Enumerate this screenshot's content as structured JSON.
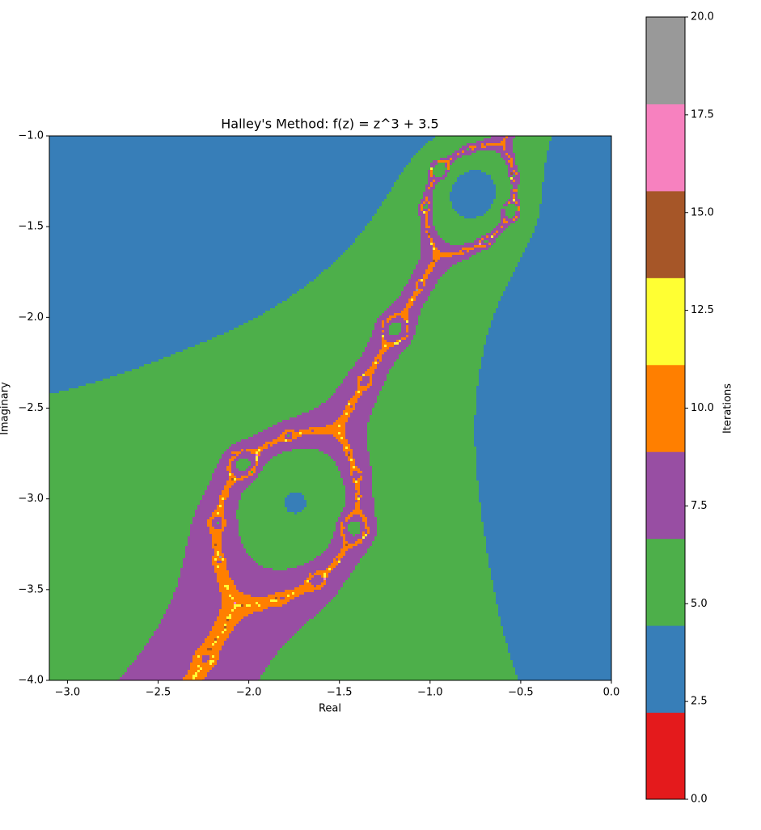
{
  "chart_data": {
    "type": "fractal",
    "title": "Halley's Method: f(z) = z^3 + 3.5",
    "x_label": "Real",
    "y_label": "Imaginary",
    "xlim": [
      -3.1,
      0
    ],
    "ylim": [
      -4,
      -1
    ],
    "xticks": [
      {
        "value": -3,
        "label": "−3.0"
      },
      {
        "value": -2.5,
        "label": "−2.5"
      },
      {
        "value": -2,
        "label": "−2.0"
      },
      {
        "value": -1.5,
        "label": "−1.5"
      },
      {
        "value": -1,
        "label": "−1.0"
      },
      {
        "value": -0.5,
        "label": "−0.5"
      },
      {
        "value": 0,
        "label": "0.0"
      }
    ],
    "yticks": [
      {
        "value": -1,
        "label": "−1.0"
      },
      {
        "value": -1.5,
        "label": "−1.5"
      },
      {
        "value": -2,
        "label": "−2.0"
      },
      {
        "value": -2.5,
        "label": "−2.5"
      },
      {
        "value": -3,
        "label": "−3.0"
      },
      {
        "value": -3.5,
        "label": "−3.5"
      },
      {
        "value": -4,
        "label": "−4.0"
      }
    ],
    "colorbar_label": "Iterations",
    "clim": [
      0,
      20
    ],
    "cticks": [
      {
        "value": 0,
        "label": "0.0"
      },
      {
        "value": 2.5,
        "label": "2.5"
      },
      {
        "value": 5,
        "label": "5.0"
      },
      {
        "value": 7.5,
        "label": "7.5"
      },
      {
        "value": 10,
        "label": "10.0"
      },
      {
        "value": 12.5,
        "label": "12.5"
      },
      {
        "value": 15,
        "label": "15.0"
      },
      {
        "value": 17.5,
        "label": "17.5"
      },
      {
        "value": 20,
        "label": "20.0"
      }
    ],
    "colors": [
      "#e41a1c",
      "#377eb8",
      "#4daf4a",
      "#984ea3",
      "#ff7f00",
      "#ffff33",
      "#a65628",
      "#f781bf",
      "#999999"
    ]
  }
}
